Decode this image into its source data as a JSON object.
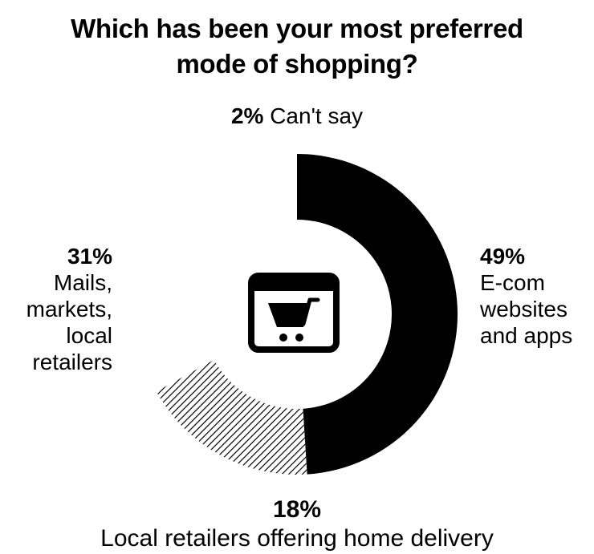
{
  "title_line1": "Which has been your most preferred",
  "title_line2": "mode of shopping?",
  "chart_data": {
    "type": "pie",
    "variant": "partial-donut",
    "title": "Which has been your most preferred mode of shopping?",
    "unit": "%",
    "categories": [
      "E-com websites and apps",
      "Local retailers offering home delivery",
      "Mails, markets, local retailers",
      "Can't say"
    ],
    "values": [
      49,
      18,
      31,
      2
    ],
    "percent_labels": [
      "49%",
      "18%",
      "31%",
      "2%"
    ],
    "label_lines": [
      [
        "E-com",
        "websites",
        "and apps"
      ],
      [
        "Local retailers offering home delivery"
      ],
      [
        "Mails,",
        "markets,",
        "local",
        "retailers"
      ],
      [
        "Can't say"
      ]
    ],
    "rendered_segments": [
      0,
      1
    ],
    "colors": [
      "#000000",
      "#9a9a9a"
    ],
    "center_icon": "shopping-cart-icon"
  }
}
